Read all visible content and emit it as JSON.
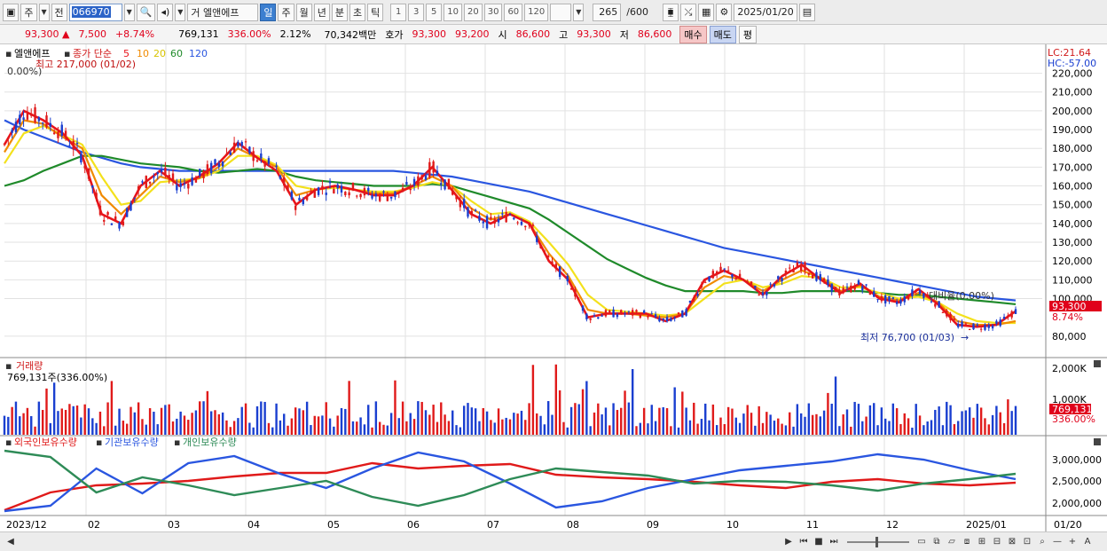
{
  "toolbar": {
    "market": "주",
    "prev_label": "전",
    "code": "066970",
    "name": "거 엘앤에프",
    "periods": [
      "일",
      "주",
      "월",
      "년",
      "분",
      "초",
      "틱"
    ],
    "selected_period": "일",
    "intervals": [
      "1",
      "3",
      "5",
      "10",
      "20",
      "30",
      "60",
      "120"
    ],
    "count": "265",
    "count_max": "/600",
    "date": "2025/01/20"
  },
  "quote": {
    "price": "93,300",
    "change": "7,500",
    "change_pct": "+8.74%",
    "volume": "769,131",
    "vol_ratio": "336.00%",
    "turnover": "2.12%",
    "amount": "70,342백만",
    "bid_label": "호가",
    "ask": "93,300",
    "bid": "93,200",
    "open_label": "시",
    "open": "86,600",
    "high_label": "고",
    "high": "93,300",
    "low_label": "저",
    "low": "86,600",
    "buy": "매수",
    "sell": "매도",
    "avg": "평"
  },
  "price_panel": {
    "title": "엘앤에프",
    "ma_label": "종가 단순",
    "ma_periods": [
      "5",
      "10",
      "20",
      "60",
      "120"
    ],
    "ma_colors": [
      "#e8141b",
      "#f08a00",
      "#f3e11c",
      "#1f8a2a",
      "#2a56e0"
    ],
    "high_note": "최고 217,000 (01/02)",
    "low_note": "최저 76,700 (01/03)",
    "left_note": "0.00%)",
    "right_note": "대비율(0.00%)",
    "lc": "LC:21.64",
    "hc": "HC:-57.00",
    "last_price": "93,300",
    "last_pct": "8.74%",
    "y_ticks": [
      "220,000",
      "210,000",
      "200,000",
      "190,000",
      "180,000",
      "170,000",
      "160,000",
      "150,000",
      "140,000",
      "130,000",
      "120,000",
      "110,000",
      "100,000",
      "80,000"
    ]
  },
  "volume_panel": {
    "title": "거래량",
    "value": "769,131주(336.00%)",
    "y_ticks": [
      "2,000K",
      "1,000K"
    ],
    "last": "769,131",
    "last_pct": "336.00%"
  },
  "holdings_panel": {
    "legend": [
      "외국인보유수량",
      "기관보유수량",
      "개인보유수량"
    ],
    "colors": [
      "#e01a1a",
      "#2a56e0",
      "#2e8b57"
    ],
    "y_ticks": [
      "3,000,000",
      "2,500,000",
      "2,000,000"
    ]
  },
  "x_axis": {
    "labels": [
      "2023/12",
      "02",
      "03",
      "04",
      "05",
      "06",
      "07",
      "08",
      "09",
      "10",
      "11",
      "12",
      "2025/01"
    ],
    "right_label": "01/20"
  },
  "chart_data": {
    "type": "line",
    "title": "엘앤에프",
    "series": [
      {
        "name": "5",
        "values": [
          182000,
          200000,
          195000,
          188000,
          176000,
          145000,
          140000,
          160000,
          168000,
          160000,
          165000,
          172000,
          183000,
          175000,
          168000,
          150000,
          158000,
          160000,
          158000,
          155000,
          155000,
          160000,
          170000,
          158000,
          145000,
          140000,
          145000,
          140000,
          120000,
          110000,
          90000,
          92000,
          92000,
          92000,
          88000,
          92000,
          110000,
          115000,
          110000,
          102000,
          112000,
          118000,
          110000,
          103000,
          108000,
          100000,
          98000,
          105000,
          97000,
          86000,
          85000,
          86000,
          93300
        ]
      },
      {
        "name": "10",
        "values": [
          178000,
          195000,
          193000,
          186000,
          180000,
          155000,
          145000,
          155000,
          165000,
          162000,
          164000,
          170000,
          180000,
          175000,
          170000,
          155000,
          158000,
          160000,
          158000,
          156000,
          156000,
          160000,
          165000,
          160000,
          148000,
          142000,
          145000,
          140000,
          124000,
          112000,
          94000,
          92000,
          92000,
          91000,
          90000,
          92000,
          106000,
          112000,
          110000,
          104000,
          110000,
          115000,
          111000,
          104000,
          107000,
          101000,
          99000,
          103000,
          98000,
          88000,
          86000,
          86000,
          88000
        ]
      },
      {
        "name": "20",
        "values": [
          172000,
          188000,
          192000,
          187000,
          182000,
          165000,
          150000,
          152000,
          162000,
          163000,
          164000,
          168000,
          176000,
          176000,
          171000,
          160000,
          158000,
          159000,
          158000,
          157000,
          157000,
          159000,
          162000,
          160000,
          152000,
          145000,
          146000,
          141000,
          130000,
          118000,
          102000,
          94000,
          93000,
          92000,
          91000,
          92000,
          100000,
          108000,
          110000,
          106000,
          108000,
          112000,
          111000,
          106000,
          106000,
          103000,
          100000,
          101000,
          98000,
          92000,
          88000,
          87000,
          87000
        ]
      },
      {
        "name": "60",
        "values": [
          160000,
          163000,
          168000,
          172000,
          176000,
          176000,
          174000,
          172000,
          171000,
          170000,
          168000,
          167000,
          168000,
          169000,
          168000,
          165000,
          163000,
          162000,
          161000,
          160000,
          160000,
          160000,
          161000,
          160000,
          157000,
          154000,
          151000,
          148000,
          142000,
          135000,
          128000,
          121000,
          116000,
          111000,
          107000,
          104000,
          104000,
          104000,
          104000,
          103000,
          103000,
          104000,
          104000,
          104000,
          104000,
          103000,
          102000,
          102000,
          101000,
          100000,
          99000,
          98000,
          97000
        ]
      },
      {
        "name": "120",
        "values": [
          195000,
          190000,
          186000,
          182000,
          178000,
          175000,
          172000,
          170000,
          169000,
          168000,
          168000,
          168000,
          168000,
          168000,
          168000,
          168000,
          168000,
          168000,
          168000,
          168000,
          168000,
          167000,
          166000,
          165000,
          163000,
          161000,
          159000,
          157000,
          154000,
          151000,
          148000,
          145000,
          142000,
          139000,
          136000,
          133000,
          130000,
          127000,
          125000,
          123000,
          121000,
          119000,
          117000,
          115000,
          113000,
          111000,
          109000,
          107000,
          105000,
          103000,
          101000,
          100000,
          99000
        ]
      }
    ],
    "ylim": [
      70000,
      225000
    ],
    "grid": true,
    "legend": "top-left"
  }
}
